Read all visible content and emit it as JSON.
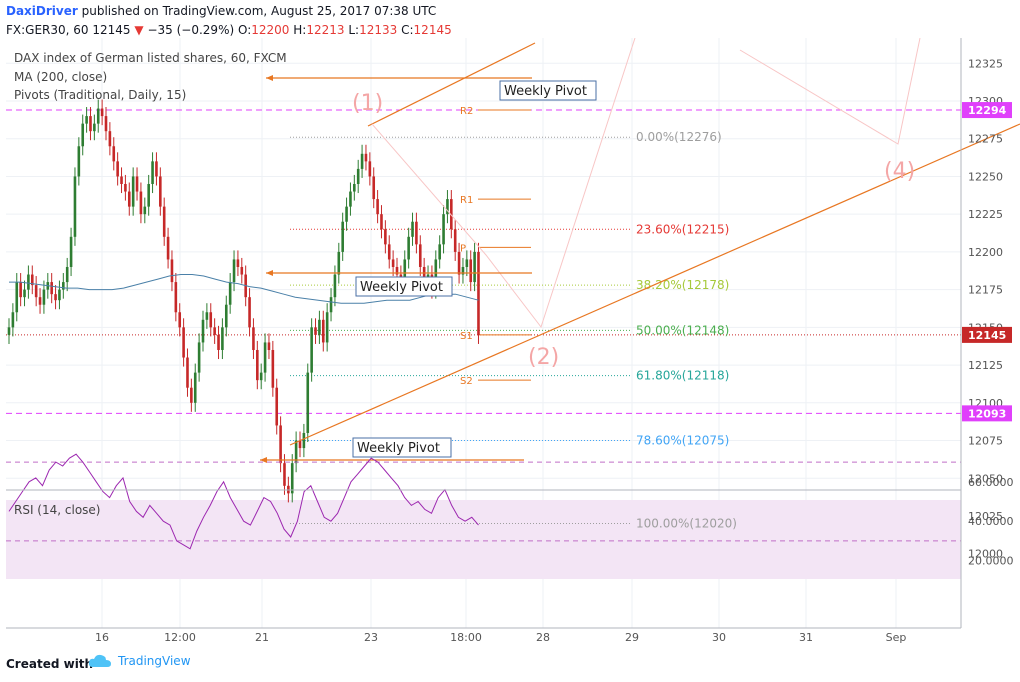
{
  "header": {
    "author": "DaxiDriver",
    "published_text": "published on TradingView.com, August 25, 2017 07:38 UTC",
    "symbol": "FX:GER30, 60",
    "last": "12145",
    "change": "−35 (−0.29%)",
    "open_label": "O:",
    "open": "12200",
    "high_label": "H:",
    "high": "12213",
    "low_label": "L:",
    "low": "12133",
    "close_label": "C:",
    "close": "12145"
  },
  "legend": {
    "line1": "DAX index of German listed shares, 60, FXCM",
    "line2": "MA (200, close)",
    "line3": "Pivots (Traditional, Daily, 15)",
    "rsi": "RSI (14, close)"
  },
  "footer": {
    "created": "Created with",
    "brand": "TradingView"
  },
  "colors": {
    "up": "#2e7d32",
    "down": "#c62828",
    "ma": "#4a80a8",
    "pivot": "#e87722",
    "magenta": "#e040fb",
    "rsi_line": "#9c27b0",
    "rsi_band": "#f3e5f5",
    "wave": "#f4a6a6"
  },
  "chart_data": {
    "type": "candlestick",
    "x_ticks": [
      "16",
      "12:00",
      "21",
      "23",
      "18:00",
      "28",
      "29",
      "30",
      "31",
      "Sep"
    ],
    "y_ticks": [
      "12325",
      "12300",
      "12275",
      "12250",
      "12225",
      "12200",
      "12175",
      "12150",
      "12125",
      "12100",
      "12075",
      "12050",
      "12025",
      "12000"
    ],
    "price_labels": [
      {
        "text": "12294",
        "value": 12294
      },
      {
        "text": "12145",
        "value": 12145
      },
      {
        "text": "12093",
        "value": 12093
      }
    ],
    "candles_t_start": 0,
    "candles_close": [
      12150,
      12160,
      12180,
      12170,
      12175,
      12185,
      12178,
      12170,
      12165,
      12175,
      12180,
      12172,
      12168,
      12175,
      12180,
      12190,
      12210,
      12250,
      12270,
      12285,
      12290,
      12280,
      12285,
      12295,
      12290,
      12280,
      12270,
      12260,
      12250,
      12245,
      12240,
      12230,
      12250,
      12240,
      12225,
      12230,
      12245,
      12260,
      12250,
      12230,
      12210,
      12195,
      12180,
      12160,
      12150,
      12130,
      12110,
      12100,
      12120,
      12140,
      12155,
      12160,
      12150,
      12145,
      12135,
      12150,
      12165,
      12180,
      12195,
      12190,
      12185,
      12170,
      12150,
      12135,
      12115,
      12120,
      12140,
      12135,
      12110,
      12085,
      12060,
      12045,
      12040,
      12060,
      12075,
      12070,
      12080,
      12120,
      12150,
      12145,
      12155,
      12140,
      12160,
      12170,
      12185,
      12200,
      12220,
      12230,
      12240,
      12245,
      12255,
      12265,
      12260,
      12250,
      12235,
      12225,
      12215,
      12205,
      12195,
      12190,
      12185,
      12180,
      12195,
      12210,
      12220,
      12205,
      12190,
      12180,
      12185,
      12175,
      12195,
      12205,
      12225,
      12235,
      12215,
      12200,
      12185,
      12190,
      12195,
      12180,
      12200,
      12145
    ],
    "ma_200": [
      12180,
      12180,
      12179,
      12178,
      12177,
      12176,
      12176,
      12175,
      12175,
      12175,
      12176,
      12178,
      12180,
      12182,
      12184,
      12185,
      12185,
      12184,
      12182,
      12180,
      12179,
      12177,
      12176,
      12174,
      12172,
      12170,
      12169,
      12168,
      12167,
      12166,
      12166,
      12166,
      12167,
      12168,
      12168,
      12168,
      12170,
      12172,
      12172,
      12172,
      12170,
      12168
    ],
    "pivots": [
      {
        "label": "R2",
        "value": 12294
      },
      {
        "label": "R1",
        "value": 12235
      },
      {
        "label": "P",
        "value": 12203
      },
      {
        "label": "S1",
        "value": 12145
      },
      {
        "label": "S2",
        "value": 12115
      }
    ],
    "weekly_pivot_labels": [
      "Weekly Pivot",
      "Weekly Pivot",
      "Weekly Pivot"
    ],
    "fib_levels": [
      {
        "label": "0.00%(12276)",
        "value": 12276,
        "color": "#9e9e9e"
      },
      {
        "label": "23.60%(12215)",
        "value": 12215,
        "color": "#e53935"
      },
      {
        "label": "38.20%(12178)",
        "value": 12178,
        "color": "#a6c93a"
      },
      {
        "label": "50.00%(12148)",
        "value": 12148,
        "color": "#4caf50"
      },
      {
        "label": "61.80%(12118)",
        "value": 12118,
        "color": "#26a69a"
      },
      {
        "label": "78.60%(12075)",
        "value": 12075,
        "color": "#42a5f5"
      },
      {
        "label": "100.00%(12020)",
        "value": 12020,
        "color": "#9e9e9e"
      }
    ],
    "wave_labels": [
      "(1)",
      "(2)",
      "(4)"
    ],
    "rsi": {
      "y_ticks": [
        "60.0000",
        "40.0000",
        "20.0000"
      ],
      "upper": 70,
      "lower": 30,
      "values": [
        45,
        50,
        55,
        60,
        62,
        58,
        66,
        70,
        68,
        72,
        74,
        70,
        65,
        60,
        55,
        52,
        58,
        62,
        50,
        45,
        42,
        48,
        44,
        40,
        38,
        30,
        28,
        26,
        35,
        42,
        48,
        55,
        60,
        52,
        46,
        40,
        38,
        45,
        52,
        50,
        44,
        36,
        32,
        40,
        55,
        58,
        50,
        42,
        40,
        44,
        52,
        60,
        64,
        68,
        72,
        70,
        66,
        62,
        58,
        52,
        48,
        50,
        46,
        44,
        52,
        56,
        48,
        42,
        40,
        42,
        38
      ]
    }
  }
}
